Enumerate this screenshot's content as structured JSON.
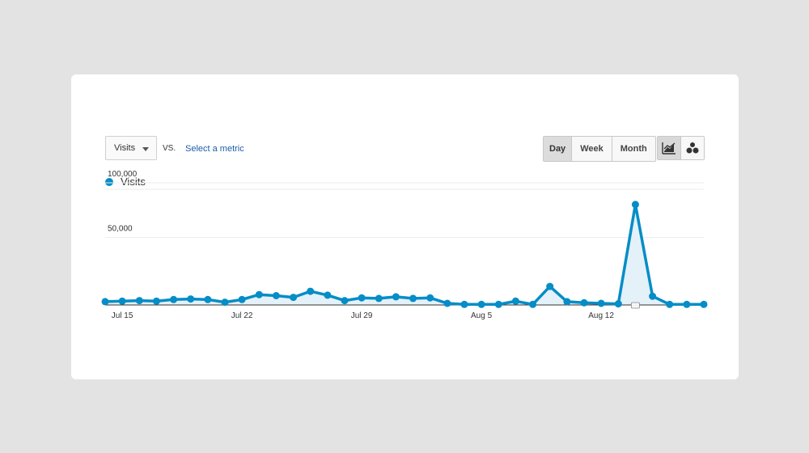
{
  "controls": {
    "metric": "Visits",
    "vs": "VS.",
    "select_metric": "Select a metric",
    "ranges": [
      "Day",
      "Week",
      "Month"
    ],
    "active_range": "Day",
    "views": [
      "line-chart-icon",
      "motion-chart-icon"
    ]
  },
  "colors": {
    "series": "#058dc7",
    "fill": "#e4f1f9",
    "grid": "#eeeeee",
    "axis": "#333333"
  },
  "chart_data": {
    "type": "line",
    "legend": "Visits",
    "x": [
      "Jul 14",
      "Jul 15",
      "Jul 16",
      "Jul 17",
      "Jul 18",
      "Jul 19",
      "Jul 20",
      "Jul 21",
      "Jul 22",
      "Jul 23",
      "Jul 24",
      "Jul 25",
      "Jul 26",
      "Jul 27",
      "Jul 28",
      "Jul 29",
      "Jul 30",
      "Jul 31",
      "Aug 1",
      "Aug 2",
      "Aug 3",
      "Aug 4",
      "Aug 5",
      "Aug 6",
      "Aug 7",
      "Aug 8",
      "Aug 9",
      "Aug 10",
      "Aug 11",
      "Aug 12",
      "Aug 13",
      "Aug 14",
      "Aug 15",
      "Aug 16",
      "Aug 17",
      "Aug 18"
    ],
    "series": [
      {
        "name": "Visits",
        "values": [
          3000,
          3500,
          4000,
          3500,
          5000,
          5500,
          5000,
          2500,
          5000,
          9500,
          8500,
          7000,
          12500,
          9000,
          4000,
          6500,
          6000,
          7500,
          6000,
          6500,
          1500,
          500,
          500,
          500,
          3500,
          500,
          17000,
          3000,
          2000,
          1500,
          1000,
          92000,
          8000,
          500,
          500,
          500
        ]
      }
    ],
    "xtick_labels": [
      "Jul 15",
      "Jul 22",
      "Jul 29",
      "Aug 5",
      "Aug 12"
    ],
    "xtick_indices": [
      1,
      8,
      15,
      22,
      29
    ],
    "yticks": [
      50000,
      100000
    ],
    "ytick_labels": [
      "50,000",
      "100,000"
    ],
    "ylim": [
      0,
      100000
    ],
    "grid": true,
    "annotation_index": 31
  }
}
